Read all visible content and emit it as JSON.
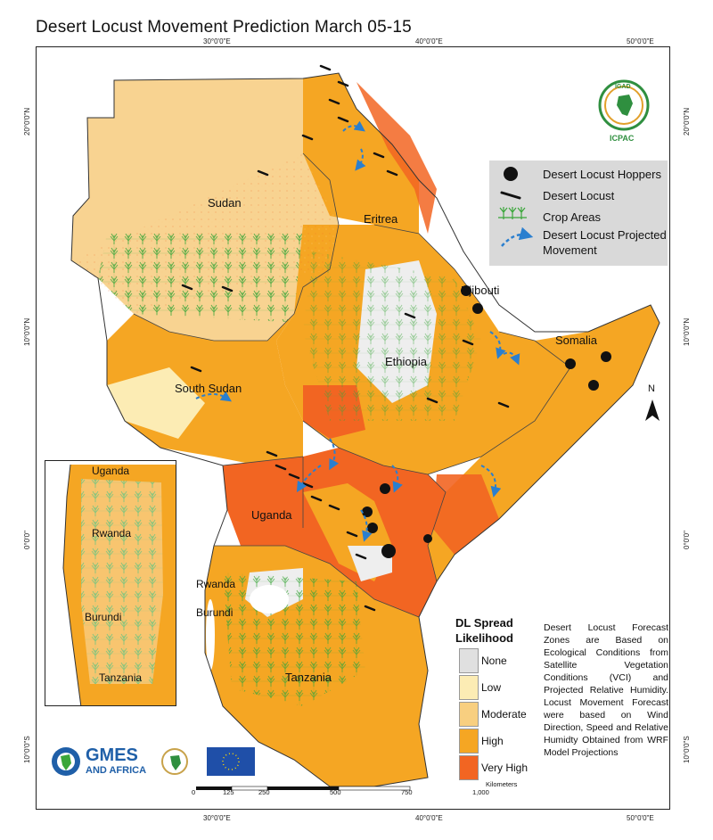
{
  "title": "Desert Locust Movement Prediction March 05-15",
  "coords": {
    "lon_top": [
      "30°0'0\"E",
      "40°0'0\"E",
      "50°0'0\"E"
    ],
    "lon_bottom": [
      "30°0'0\"E",
      "40°0'0\"E",
      "50°0'0\"E"
    ],
    "lat_left": [
      "20°0'0\"N",
      "10°0'0\"N",
      "0°0'0\"",
      "10°0'0\"S"
    ],
    "lat_right": [
      "20°0'0\"N",
      "10°0'0\"N",
      "0°0'0\"",
      "10°0'0\"S"
    ]
  },
  "countries": {
    "sudan": "Sudan",
    "eritrea": "Eritrea",
    "djibouti": "Djibouti",
    "somalia": "Somalia",
    "ethiopia": "Ethiopia",
    "south_sudan": "South Sudan",
    "uganda": "Uganda",
    "tanzania": "Tanzania"
  },
  "inset": {
    "uganda": "Uganda",
    "rwanda": "Rwanda",
    "burundi": "Burundi",
    "tanzania": "Tanzania"
  },
  "rwanda": "Rwanda",
  "burundi": "Burundi",
  "north": "N",
  "icpac": {
    "name": "ICPAC",
    "logo_text": "IGAD"
  },
  "legend": {
    "hoppers": "Desert Locust Hoppers",
    "locust": "Desert Locust",
    "crops": "Crop Areas",
    "movement_line1": "Desert Locust Projected",
    "movement_line2": "Movement"
  },
  "spread": {
    "title_line1": "DL Spread",
    "title_line2": "Likelihood",
    "classes": [
      {
        "label": "None",
        "color": "#e0e0e0"
      },
      {
        "label": "Low",
        "color": "#fcecb4"
      },
      {
        "label": "Moderate",
        "color": "#f8cf80"
      },
      {
        "label": "High",
        "color": "#f5a623"
      },
      {
        "label": "Very High",
        "color": "#f26522"
      }
    ]
  },
  "note": "Desert Locust Forecast Zones are Based on Ecological Conditions from Satellite Vegetation Conditions (VCI) and Projected Relative Humidity. Locust Movement Forecast were based on Wind Direction, Speed and Relative Humidty Obtained from WRF Model Projections",
  "scale": {
    "ticks": [
      "0",
      "125",
      "250",
      "500",
      "750",
      "1,000"
    ],
    "unit": "Kilometers"
  },
  "partners": {
    "gmes_line1": "GMES",
    "gmes_line2": "AND AFRICA"
  },
  "colors": {
    "sudan_fill": "#f8d391",
    "high": "#f5a623",
    "very_high": "#f26522",
    "none": "#e8e8e8",
    "crop": "#3aa63a",
    "arrow": "#2a7fcf"
  }
}
